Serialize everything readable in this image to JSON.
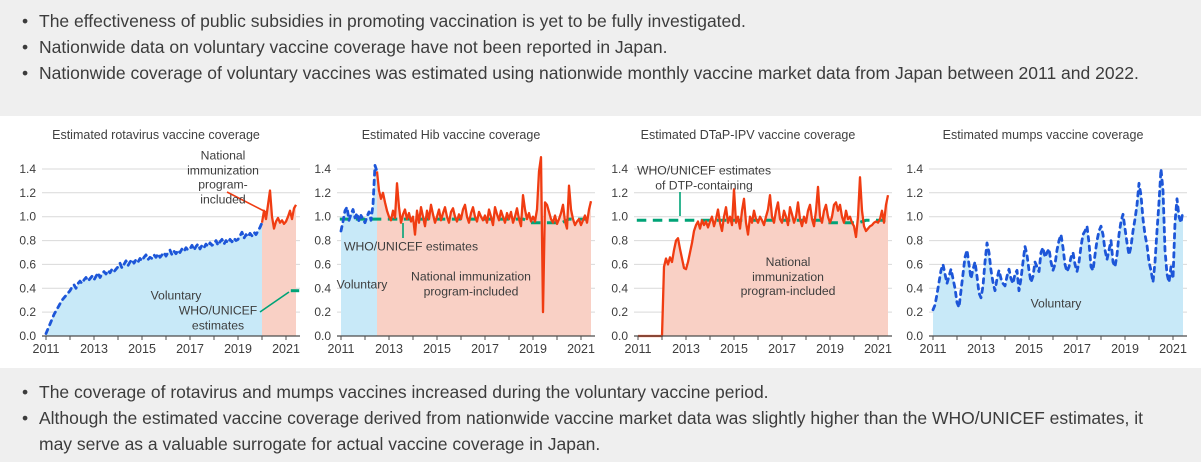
{
  "top_bullets": [
    "The effectiveness of public subsidies in promoting vaccination is yet to be fully investigated.",
    "Nationwide data on voluntary vaccine coverage have not been reported in Japan.",
    "Nationwide coverage of voluntary vaccines was estimated using nationwide monthly vaccine market data from Japan between 2011 and 2022."
  ],
  "bottom_bullets": [
    "The coverage of rotavirus and mumps vaccines increased during the voluntary vaccine period.",
    "Although the estimated vaccine coverage derived from nationwide vaccine market data was slightly higher than the WHO/UNICEF estimates, it may serve as a valuable surrogate for actual vaccine coverage in Japan."
  ],
  "colors": {
    "voluntary_line": "#1d56d8",
    "voluntary_fill": "#c8e9f8",
    "nip_line": "#f03c12",
    "nip_fill": "#f9d0c5",
    "who_line": "#00a377",
    "grid": "#d9d9d9",
    "axis": "#4c4c4c",
    "text": "#3d3d3d",
    "band_bg": "#efefef"
  },
  "chart_data": [
    {
      "type": "line",
      "title": "Estimated rotavirus vaccine coverage",
      "x_start_year": 2011,
      "x_interval": "monthly",
      "xticks": [
        2011,
        2013,
        2015,
        2017,
        2019,
        2021
      ],
      "yticks": [
        "0.0",
        "0.2",
        "0.4",
        "0.6",
        "0.8",
        "1.0",
        "1.2",
        "1.4"
      ],
      "ylim": [
        0,
        1.5
      ],
      "voluntary_months": 108,
      "values": [
        0.02,
        0.06,
        0.1,
        0.14,
        0.18,
        0.21,
        0.24,
        0.27,
        0.3,
        0.32,
        0.34,
        0.36,
        0.38,
        0.41,
        0.43,
        0.4,
        0.44,
        0.46,
        0.44,
        0.47,
        0.49,
        0.46,
        0.48,
        0.5,
        0.47,
        0.5,
        0.53,
        0.49,
        0.52,
        0.54,
        0.52,
        0.55,
        0.53,
        0.56,
        0.54,
        0.56,
        0.58,
        0.61,
        0.57,
        0.6,
        0.63,
        0.59,
        0.62,
        0.64,
        0.61,
        0.64,
        0.62,
        0.65,
        0.63,
        0.66,
        0.68,
        0.64,
        0.66,
        0.65,
        0.68,
        0.66,
        0.69,
        0.66,
        0.68,
        0.7,
        0.67,
        0.7,
        0.72,
        0.68,
        0.71,
        0.69,
        0.72,
        0.7,
        0.73,
        0.71,
        0.74,
        0.72,
        0.73,
        0.76,
        0.72,
        0.75,
        0.77,
        0.73,
        0.76,
        0.74,
        0.77,
        0.75,
        0.78,
        0.76,
        0.77,
        0.8,
        0.76,
        0.79,
        0.81,
        0.77,
        0.8,
        0.78,
        0.81,
        0.79,
        0.82,
        0.8,
        0.81,
        0.84,
        0.87,
        0.82,
        0.85,
        0.83,
        0.86,
        0.84,
        0.87,
        0.85,
        0.88,
        0.91,
        0.95,
        1.05,
        0.98,
        1.1,
        1.22,
        1.0,
        0.9,
        0.96,
        0.99,
        0.95,
        0.97,
        0.94,
        0.96,
        1.0,
        1.05,
        0.98,
        1.07,
        1.1
      ],
      "who_estimates": [
        [
          2021.2,
          0.38
        ],
        [
          2021.55,
          0.38
        ]
      ],
      "labels": {
        "nip": "National immunization\nprogram-included",
        "voluntary": "Voluntary",
        "who": "WHO/UNICEF estimates"
      }
    },
    {
      "type": "line",
      "title": "Estimated Hib vaccine coverage",
      "x_start_year": 2011,
      "x_interval": "monthly",
      "xticks": [
        2011,
        2013,
        2015,
        2017,
        2019,
        2021
      ],
      "yticks": [
        "0.0",
        "0.2",
        "0.4",
        "0.6",
        "0.8",
        "1.0",
        "1.2",
        "1.4"
      ],
      "ylim": [
        0,
        1.5
      ],
      "voluntary_months": 18,
      "values": [
        0.88,
        0.96,
        1.05,
        1.08,
        0.97,
        1.02,
        1.06,
        0.99,
        1.03,
        0.96,
        1.01,
        0.98,
        0.95,
        1.0,
        1.04,
        0.97,
        1.1,
        1.43,
        1.38,
        1.22,
        1.15,
        1.2,
        1.12,
        1.05,
        1.0,
        0.97,
        1.05,
        0.99,
        1.28,
        1.08,
        0.95,
        1.02,
        1.06,
        0.98,
        1.03,
        0.96,
        1.0,
        0.85,
        1.05,
        0.95,
        1.08,
        1.0,
        0.92,
        1.05,
        0.98,
        1.1,
        1.02,
        0.95,
        1.0,
        1.06,
        0.97,
        1.03,
        1.08,
        1.0,
        0.95,
        1.04,
        1.07,
        1.0,
        0.96,
        1.02,
        0.98,
        1.06,
        1.1,
        1.0,
        0.95,
        1.03,
        1.08,
        1.0,
        0.96,
        1.04,
        1.0,
        0.97,
        1.01,
        0.95,
        1.06,
        1.0,
        0.93,
        1.08,
        1.02,
        0.97,
        1.05,
        1.0,
        0.95,
        1.03,
        0.98,
        1.04,
        0.95,
        1.0,
        1.07,
        0.98,
        0.92,
        1.18,
        1.06,
        0.98,
        1.03,
        0.96,
        1.0,
        0.96,
        1.06,
        1.38,
        1.5,
        0.2,
        1.12,
        1.1,
        1.04,
        0.98,
        0.95,
        1.01,
        0.94,
        0.98,
        1.03,
        1.1,
        0.96,
        0.9,
        1.26,
        1.06,
        0.98,
        0.93,
        0.96,
        0.98,
        0.93,
        0.97,
        1.01,
        0.95,
        1.06,
        1.13
      ],
      "who_estimates": [
        [
          2010.95,
          0.98
        ],
        [
          2018.6,
          0.98
        ],
        [
          2018.9,
          0.95
        ],
        [
          2020.2,
          0.95
        ],
        [
          2020.5,
          0.98
        ],
        [
          2021.45,
          0.98
        ]
      ],
      "labels": {
        "who": "WHO/UNICEF estimates",
        "voluntary": "Voluntary",
        "nip": "National immunization\nprogram-included"
      }
    },
    {
      "type": "line",
      "title": "Estimated DTaP-IPV vaccine coverage",
      "x_start_year": 2011,
      "x_interval": "monthly",
      "xticks": [
        2011,
        2013,
        2015,
        2017,
        2019,
        2021
      ],
      "yticks": [
        "0.0",
        "0.2",
        "0.4",
        "0.6",
        "0.8",
        "1.0",
        "1.2",
        "1.4"
      ],
      "ylim": [
        0,
        1.5
      ],
      "voluntary_months": 0,
      "values": [
        0.0,
        0.0,
        0.0,
        0.0,
        0.0,
        0.0,
        0.0,
        0.0,
        0.0,
        0.0,
        0.0,
        0.0,
        0.0,
        0.58,
        0.65,
        0.6,
        0.66,
        0.62,
        0.72,
        0.8,
        0.82,
        0.73,
        0.65,
        0.57,
        0.56,
        0.62,
        0.7,
        0.78,
        0.88,
        0.93,
        0.96,
        0.9,
        0.97,
        0.93,
        0.96,
        0.91,
        0.96,
        1.0,
        0.92,
        0.98,
        1.06,
        0.95,
        0.88,
        1.0,
        1.08,
        0.95,
        1.0,
        0.93,
        1.23,
        0.95,
        1.0,
        0.9,
        1.05,
        1.15,
        0.95,
        0.85,
        1.0,
        0.95,
        1.05,
        0.98,
        0.95,
        1.0,
        0.97,
        0.93,
        1.0,
        1.06,
        1.18,
        1.0,
        0.95,
        1.05,
        1.12,
        0.98,
        0.95,
        1.05,
        1.0,
        0.93,
        1.08,
        1.02,
        0.95,
        1.0,
        1.12,
        0.98,
        0.92,
        1.0,
        0.95,
        1.05,
        1.1,
        0.98,
        0.92,
        1.05,
        1.25,
        1.0,
        0.95,
        1.05,
        1.1,
        1.0,
        0.95,
        1.0,
        1.1,
        1.12,
        1.05,
        1.1,
        1.0,
        0.95,
        1.05,
        0.98,
        1.0,
        0.95,
        0.92,
        0.83,
        1.0,
        1.33,
        1.05,
        0.92,
        0.88,
        0.9,
        0.92,
        0.93,
        0.95,
        0.96,
        0.95,
        0.98,
        1.05,
        0.95,
        1.1,
        1.18
      ],
      "who_estimates": [
        [
          2010.95,
          0.97
        ],
        [
          2018.6,
          0.97
        ],
        [
          2018.9,
          0.95
        ],
        [
          2020.2,
          0.95
        ],
        [
          2020.5,
          0.97
        ],
        [
          2021.45,
          0.97
        ]
      ],
      "labels": {
        "who": "WHO/UNICEF estimates\nof DTP-containing",
        "nip": "National immunization\nprogram-included"
      }
    },
    {
      "type": "line",
      "title": "Estimated mumps vaccine coverage",
      "x_start_year": 2011,
      "x_interval": "monthly",
      "xticks": [
        2011,
        2013,
        2015,
        2017,
        2019,
        2021
      ],
      "yticks": [
        "0.0",
        "0.2",
        "0.4",
        "0.6",
        "0.8",
        "1.0",
        "1.2",
        "1.4"
      ],
      "ylim": [
        0,
        1.5
      ],
      "voluntary_months": 126,
      "values": [
        0.22,
        0.26,
        0.35,
        0.45,
        0.55,
        0.6,
        0.52,
        0.44,
        0.5,
        0.56,
        0.48,
        0.4,
        0.28,
        0.24,
        0.38,
        0.52,
        0.66,
        0.72,
        0.6,
        0.48,
        0.56,
        0.62,
        0.5,
        0.36,
        0.32,
        0.42,
        0.62,
        0.78,
        0.7,
        0.55,
        0.45,
        0.38,
        0.48,
        0.55,
        0.48,
        0.44,
        0.42,
        0.5,
        0.56,
        0.48,
        0.44,
        0.52,
        0.55,
        0.38,
        0.48,
        0.62,
        0.75,
        0.68,
        0.55,
        0.45,
        0.5,
        0.62,
        0.58,
        0.54,
        0.7,
        0.74,
        0.66,
        0.7,
        0.73,
        0.62,
        0.55,
        0.6,
        0.72,
        0.8,
        0.85,
        0.74,
        0.6,
        0.54,
        0.58,
        0.66,
        0.7,
        0.6,
        0.54,
        0.62,
        0.75,
        0.85,
        0.88,
        0.92,
        0.78,
        0.58,
        0.55,
        0.68,
        0.8,
        0.88,
        0.92,
        0.85,
        0.72,
        0.64,
        0.72,
        0.8,
        0.62,
        0.58,
        0.68,
        0.85,
        0.96,
        1.02,
        0.9,
        0.78,
        0.68,
        0.75,
        0.88,
        0.98,
        1.1,
        1.28,
        1.18,
        0.98,
        0.85,
        0.76,
        0.62,
        0.55,
        0.45,
        0.62,
        0.88,
        1.12,
        1.4,
        1.22,
        0.72,
        0.52,
        0.45,
        0.58,
        0.48,
        0.95,
        1.15,
        1.0,
        0.95,
        1.05
      ],
      "who_estimates": null,
      "labels": {
        "voluntary": "Voluntary"
      }
    }
  ]
}
